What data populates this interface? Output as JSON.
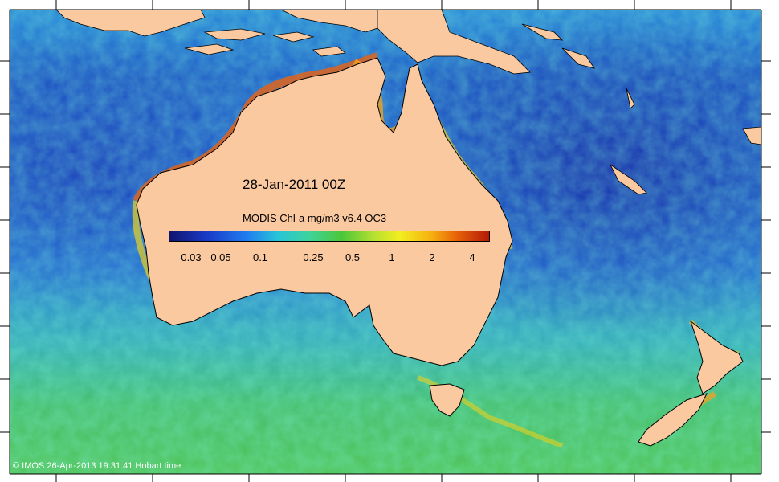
{
  "title": "28-Jan-2011 00Z",
  "colorbar": {
    "label": "MODIS Chl-a mg/m3 v6.4 OC3",
    "ticks": [
      "0.03",
      "0.05",
      "0.1",
      "0.25",
      "0.5",
      "1",
      "2",
      "4"
    ],
    "tick_values": [
      0.03,
      0.05,
      0.1,
      0.25,
      0.5,
      1,
      2,
      4
    ],
    "colors": [
      "#10146e",
      "#1a3cc8",
      "#1f7cf0",
      "#28c4d8",
      "#3ed49a",
      "#4cc638",
      "#b6e030",
      "#f2ee20",
      "#f6b010",
      "#e66008",
      "#b41a08"
    ]
  },
  "copyright": "© IMOS 26-Apr-2013 19:31:41 Hobart time",
  "colors": {
    "land": "#fbc9a0",
    "ocean_deep": "#1a4fc2",
    "ocean_mid": "#2aa0dc",
    "ocean_south": "#4fc26a",
    "coastal_bloom": "#c8501a"
  }
}
